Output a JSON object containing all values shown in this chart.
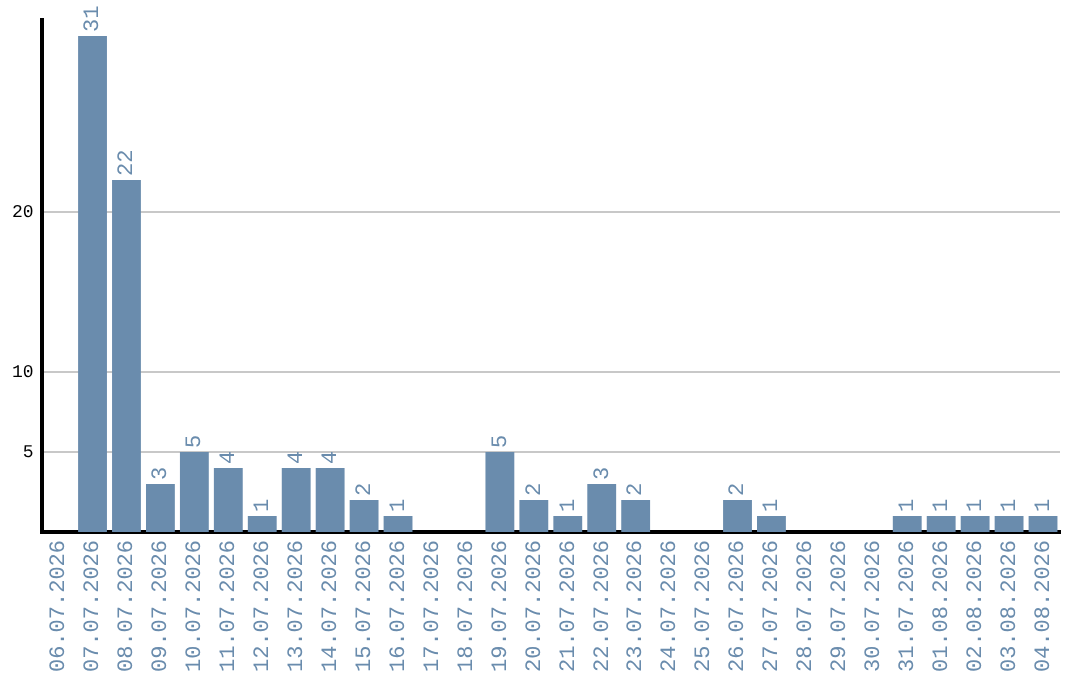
{
  "chart_data": {
    "type": "bar",
    "categories": [
      "06.07.2026",
      "07.07.2026",
      "08.07.2026",
      "09.07.2026",
      "10.07.2026",
      "11.07.2026",
      "12.07.2026",
      "13.07.2026",
      "14.07.2026",
      "15.07.2026",
      "16.07.2026",
      "17.07.2026",
      "18.07.2026",
      "19.07.2026",
      "20.07.2026",
      "21.07.2026",
      "22.07.2026",
      "23.07.2026",
      "24.07.2026",
      "25.07.2026",
      "26.07.2026",
      "27.07.2026",
      "28.07.2026",
      "29.07.2026",
      "30.07.2026",
      "31.07.2026",
      "01.08.2026",
      "02.08.2026",
      "03.08.2026",
      "04.08.2026"
    ],
    "values": [
      0,
      31,
      22,
      3,
      5,
      4,
      1,
      4,
      4,
      2,
      1,
      0,
      0,
      5,
      2,
      1,
      3,
      2,
      0,
      0,
      2,
      1,
      0,
      0,
      0,
      1,
      1,
      1,
      1,
      1
    ],
    "value_labels": [
      null,
      "31",
      "22",
      "3",
      "5",
      "4",
      "1",
      "4",
      "4",
      "2",
      "1",
      null,
      null,
      "5",
      "2",
      "1",
      "3",
      "2",
      null,
      null,
      "2",
      "1",
      null,
      null,
      null,
      "1",
      "1",
      "1",
      "1",
      "1"
    ],
    "color": "#6a8cad",
    "ylim": [
      0,
      32
    ],
    "yticks": [
      5,
      10,
      20
    ],
    "grid": "y"
  }
}
